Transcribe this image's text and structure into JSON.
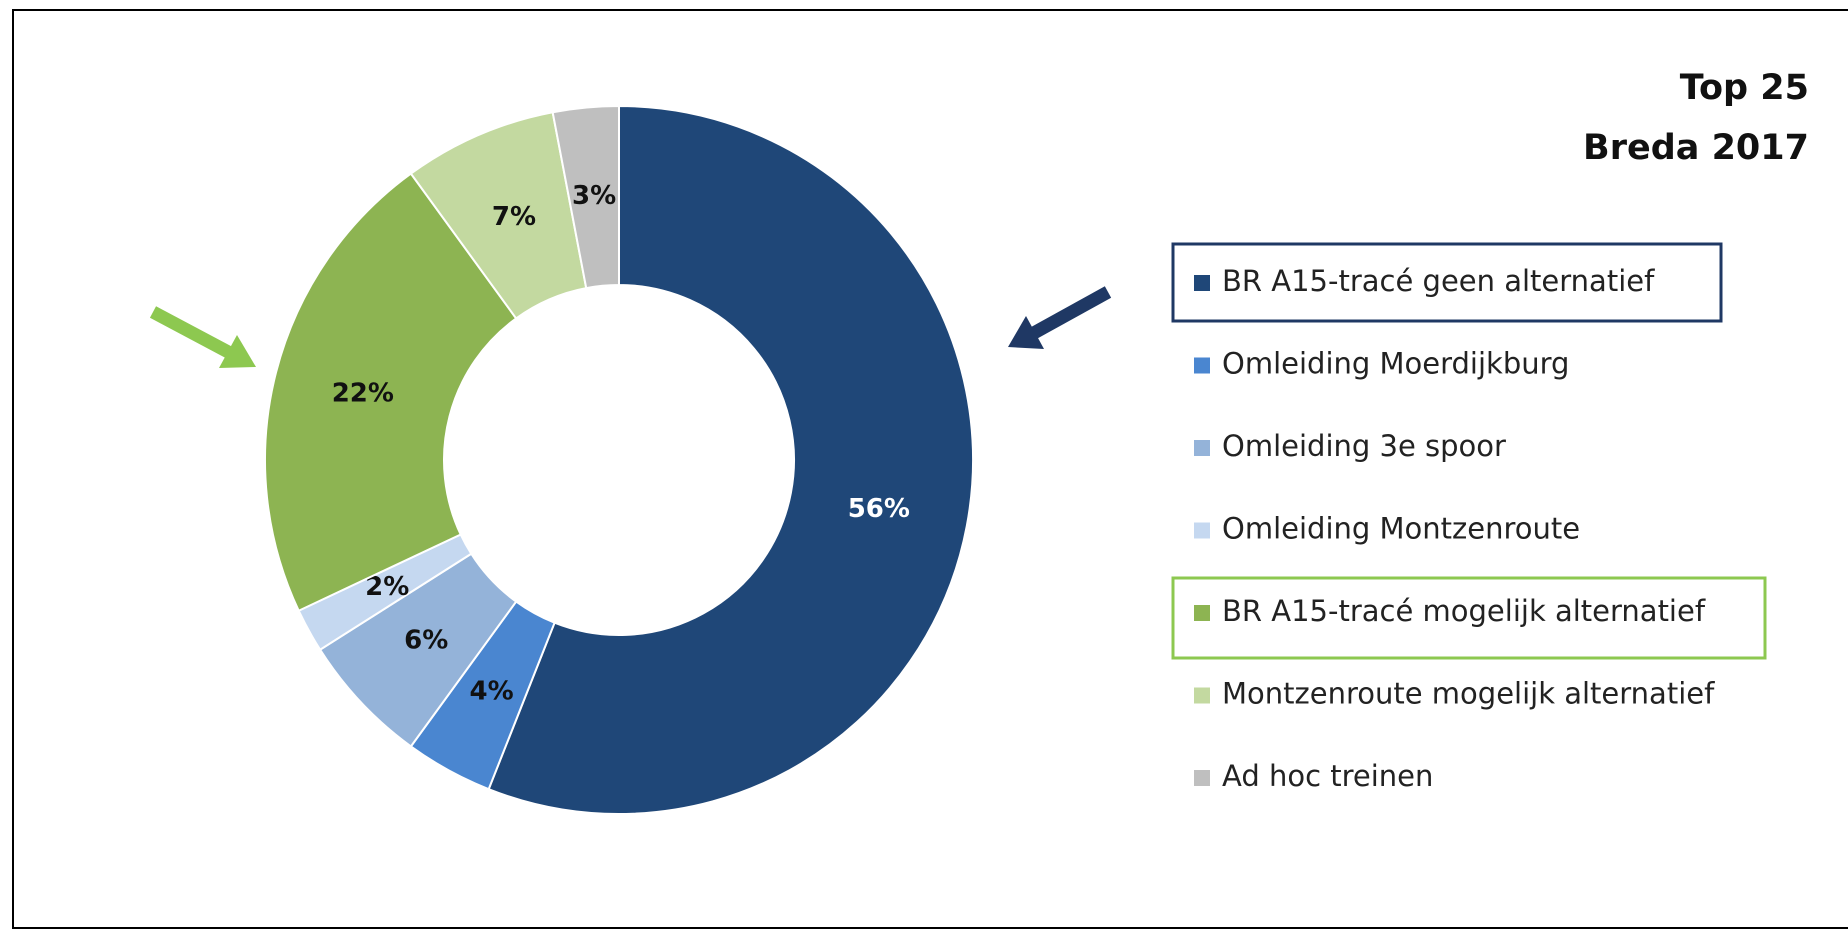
{
  "chart_data": {
    "type": "donut",
    "title": "Top 25 Breda 2017",
    "categories": [
      "BR A15-tracé geen alternatief",
      "Omleiding Moerdijkburg",
      "Omleiding 3e spoor",
      "Omleiding Montzenroute",
      "BR A15-tracé mogelijk alternatief",
      "Montzenroute mogelijk alternatief",
      "Ad hoc treinen"
    ],
    "values": [
      56,
      4,
      6,
      2,
      22,
      7,
      3
    ],
    "value_labels": [
      "56%",
      "4%",
      "6%",
      "2%",
      "22%",
      "7%",
      "3%"
    ],
    "colors": [
      "#1f4778",
      "#4a86d0",
      "#94b3d9",
      "#c5d8f0",
      "#8db452",
      "#c3d9a0",
      "#bfbfbf"
    ],
    "legend": "right"
  }
}
